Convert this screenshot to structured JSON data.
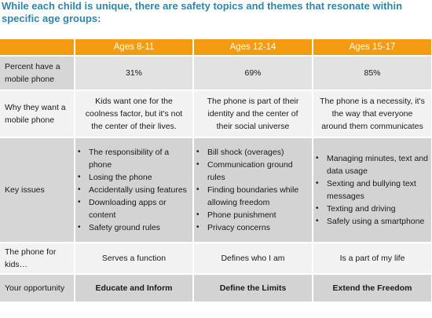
{
  "heading": "While each child is unique, there are safety topics and themes that resonate within specific age groups:",
  "colors": {
    "header": "#F39C12",
    "title": "#2E86AB"
  },
  "columns": [
    "Ages 8-11",
    "Ages 12-14",
    "Ages 15-17"
  ],
  "rows": {
    "percent": {
      "label": "Percent have a mobile phone",
      "values": [
        "31%",
        "69%",
        "85%"
      ]
    },
    "why": {
      "label": "Why they want a mobile phone",
      "values": [
        "Kids want one for the coolness factor, but it's not the center of their lives.",
        "The phone is part of their identity and the center of their social universe",
        "The phone is a necessity, it's the way that everyone around them communicates"
      ]
    },
    "issues": {
      "label": "Key issues",
      "col1": [
        "The responsibility of a phone",
        "Losing the phone",
        "Accidentally using features",
        "Downloading apps or content",
        "Safety ground rules"
      ],
      "col2": [
        "Bill shock (overages)",
        "Communication ground rules",
        "Finding boundaries while allowing freedom",
        "Phone punishment",
        "Privacy concerns"
      ],
      "col3": [
        "Managing minutes, text and data usage",
        "Sexting and bullying text messages",
        "Texting and driving",
        "Safely using a smartphone"
      ]
    },
    "phone_for": {
      "label": "The phone for kids…",
      "values": [
        "Serves a function",
        "Defines who I am",
        "Is a part of my life"
      ]
    },
    "opportunity": {
      "label": "Your opportunity",
      "values": [
        "Educate and Inform",
        "Define the Limits",
        "Extend the Freedom"
      ]
    }
  }
}
